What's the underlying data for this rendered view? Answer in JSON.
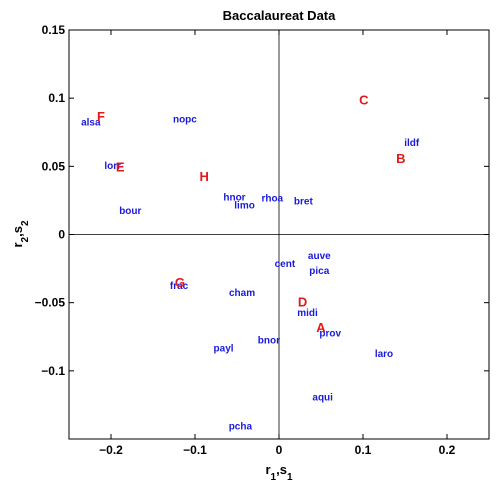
{
  "chart_data": {
    "type": "scatter",
    "title": "Baccalaureat Data",
    "xlabel": {
      "base": "r",
      "sub1": "1",
      "sep": ",s",
      "sub2": "1"
    },
    "ylabel": {
      "base": "r",
      "sub1": "2",
      "sep": ",s",
      "sub2": "2"
    },
    "xlim": [
      -0.25,
      0.25
    ],
    "ylim": [
      -0.15,
      0.15
    ],
    "xticks": [
      -0.2,
      -0.1,
      0,
      0.1,
      0.2
    ],
    "xtick_labels": [
      "−0.2",
      "−0.1",
      "0",
      "0.1",
      "0.2"
    ],
    "yticks": [
      -0.1,
      -0.05,
      0,
      0.05,
      0.1,
      0.15
    ],
    "ytick_labels": [
      "−0.1",
      "−0.05",
      "0",
      "0.05",
      "0.1",
      "0.15"
    ],
    "grid": false,
    "reference_lines": {
      "x": 0,
      "y": 0
    },
    "series": [
      {
        "color": "#1a1adc",
        "points": [
          {
            "label": "alsa",
            "x": -0.224,
            "y": 0.083
          },
          {
            "label": "nopc",
            "x": -0.112,
            "y": 0.085
          },
          {
            "label": "ildf",
            "x": 0.158,
            "y": 0.068
          },
          {
            "label": "lorr",
            "x": -0.198,
            "y": 0.051
          },
          {
            "label": "hnor",
            "x": -0.053,
            "y": 0.028
          },
          {
            "label": "limo",
            "x": -0.041,
            "y": 0.022
          },
          {
            "label": "rhoa",
            "x": -0.008,
            "y": 0.027
          },
          {
            "label": "bret",
            "x": 0.029,
            "y": 0.025
          },
          {
            "label": "bour",
            "x": -0.177,
            "y": 0.018
          },
          {
            "label": "auve",
            "x": 0.048,
            "y": -0.015
          },
          {
            "label": "cent",
            "x": 0.007,
            "y": -0.021
          },
          {
            "label": "pica",
            "x": 0.048,
            "y": -0.026
          },
          {
            "label": "frac",
            "x": -0.119,
            "y": -0.037
          },
          {
            "label": "cham",
            "x": -0.044,
            "y": -0.042
          },
          {
            "label": "midi",
            "x": 0.034,
            "y": -0.057
          },
          {
            "label": "prov",
            "x": 0.061,
            "y": -0.072
          },
          {
            "label": "bnor",
            "x": -0.012,
            "y": -0.077
          },
          {
            "label": "payl",
            "x": -0.066,
            "y": -0.083
          },
          {
            "label": "laro",
            "x": 0.125,
            "y": -0.087
          },
          {
            "label": "aqui",
            "x": 0.052,
            "y": -0.119
          },
          {
            "label": "pcha",
            "x": -0.046,
            "y": -0.14
          }
        ]
      },
      {
        "color": "#e01a1a",
        "points": [
          {
            "label": "C",
            "x": 0.101,
            "y": 0.099
          },
          {
            "label": "F",
            "x": -0.212,
            "y": 0.087
          },
          {
            "label": "B",
            "x": 0.145,
            "y": 0.056
          },
          {
            "label": "E",
            "x": -0.189,
            "y": 0.05
          },
          {
            "label": "H",
            "x": -0.089,
            "y": 0.043
          },
          {
            "label": "G",
            "x": -0.118,
            "y": -0.035
          },
          {
            "label": "D",
            "x": 0.028,
            "y": -0.049
          },
          {
            "label": "A",
            "x": 0.05,
            "y": -0.068
          }
        ]
      }
    ]
  }
}
